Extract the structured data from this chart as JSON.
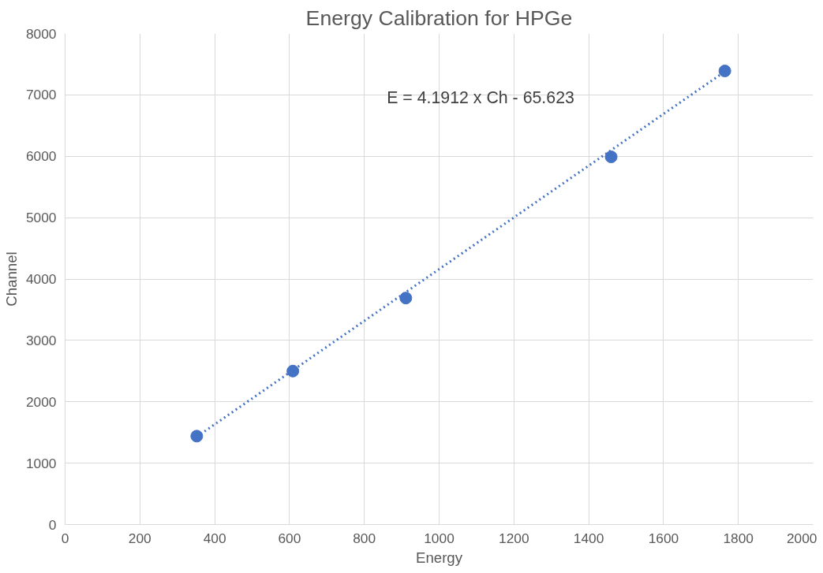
{
  "chart_data": {
    "type": "scatter",
    "title": "Energy Calibration for HPGe",
    "xlabel": "Energy",
    "ylabel": "Channel",
    "xlim": [
      0,
      2000
    ],
    "xticks": [
      0,
      200,
      400,
      600,
      800,
      1000,
      1200,
      1400,
      1600,
      1800,
      2000
    ],
    "ylim": [
      0,
      8000
    ],
    "yticks": [
      0,
      1000,
      2000,
      3000,
      4000,
      5000,
      6000,
      7000,
      8000
    ],
    "grid": true,
    "series": [
      {
        "color": "#4472c4",
        "marker": "circle",
        "x": [
          352,
          609,
          911,
          1460,
          1764
        ],
        "values": [
          1440,
          2500,
          3690,
          5990,
          7390
        ]
      },
      {
        "type": "line",
        "color": "#4472c4",
        "line_style": "dotted",
        "x": [
          352,
          1764
        ],
        "values": [
          1430,
          7380
        ]
      }
    ],
    "annotations": [
      "E = 4.1912 x Ch - 65.623"
    ]
  }
}
